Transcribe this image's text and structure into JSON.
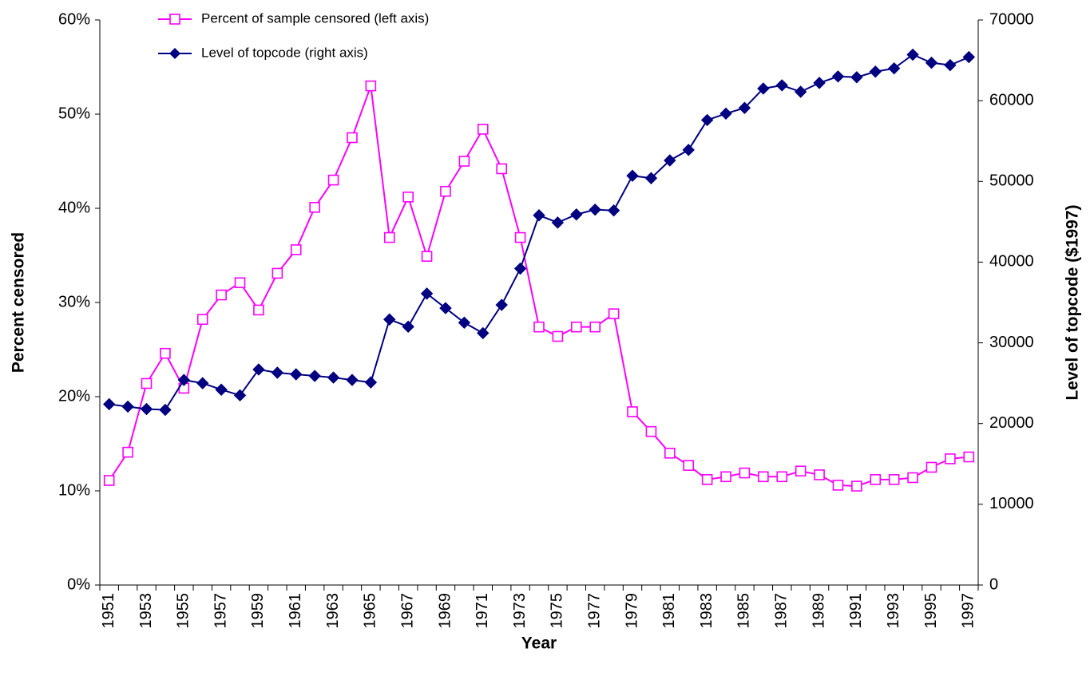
{
  "chart_data": {
    "type": "line",
    "x_label": "Year",
    "y_label": "Percent censored",
    "y2_label": "Level of topcode ($1997)",
    "categories": [
      "1951",
      null,
      "1953",
      null,
      "1955",
      null,
      "1957",
      null,
      "1959",
      null,
      "1961",
      null,
      "1963",
      null,
      "1965",
      null,
      "1967",
      null,
      "1969",
      null,
      "1971",
      null,
      "1973",
      null,
      "1975",
      null,
      "1977",
      null,
      "1979",
      null,
      "1981",
      null,
      "1983",
      null,
      "1985",
      null,
      "1987",
      null,
      "1989",
      null,
      "1991",
      null,
      "1993",
      null,
      "1995",
      null,
      "1997"
    ],
    "series": [
      {
        "name": "Percent of sample censored (left axis)",
        "color": "#ff00ff",
        "marker": "square",
        "axis": "y",
        "values": [
          11.1,
          14.1,
          21.4,
          24.6,
          20.9,
          28.2,
          30.8,
          32.1,
          29.2,
          33.1,
          35.6,
          40.1,
          43.0,
          47.5,
          53.0,
          36.9,
          41.2,
          34.9,
          41.8,
          45.0,
          48.4,
          44.2,
          36.9,
          27.4,
          26.4,
          27.4,
          27.4,
          28.8,
          18.4,
          16.3,
          14.0,
          12.7,
          11.2,
          11.5,
          11.9,
          11.5,
          11.5,
          12.1,
          11.7,
          10.6,
          10.5,
          11.2,
          11.2,
          11.4,
          12.5,
          13.4,
          13.6
        ]
      },
      {
        "name": "Level of topcode (right axis)",
        "color": "#000080",
        "marker": "diamond",
        "axis": "y2",
        "values": [
          22400,
          22100,
          21800,
          21700,
          25400,
          25000,
          24200,
          23500,
          26700,
          26300,
          26100,
          25900,
          25700,
          25400,
          25100,
          32900,
          32000,
          36100,
          34300,
          32500,
          31200,
          34700,
          39200,
          45800,
          44900,
          45900,
          46500,
          46400,
          50700,
          50400,
          52600,
          53900,
          57600,
          58400,
          59100,
          61500,
          61900,
          61100,
          62200,
          63000,
          62900,
          63600,
          64000,
          65700,
          64700,
          64400,
          65400
        ]
      }
    ],
    "ylim": [
      0,
      60
    ],
    "yticks": [
      {
        "value": 0,
        "label": "0%"
      },
      {
        "value": 10,
        "label": "10%"
      },
      {
        "value": 20,
        "label": "20%"
      },
      {
        "value": 30,
        "label": "30%"
      },
      {
        "value": 40,
        "label": "40%"
      },
      {
        "value": 50,
        "label": "50%"
      },
      {
        "value": 60,
        "label": "60%"
      }
    ],
    "y2lim": [
      0,
      70000
    ],
    "y2ticks": [
      0,
      10000,
      20000,
      30000,
      40000,
      50000,
      60000,
      70000
    ],
    "legend": "top"
  }
}
